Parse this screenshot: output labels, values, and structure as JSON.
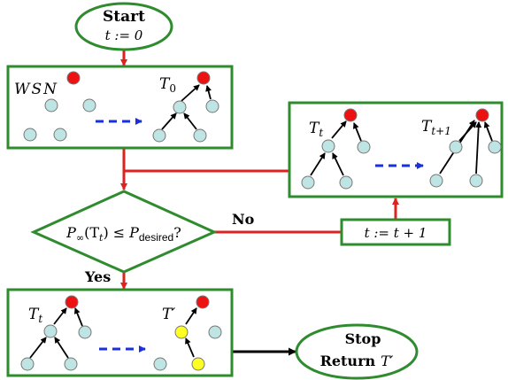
{
  "colors": {
    "box_border": "#2e8b2e",
    "flow_arrow": "#dd2222",
    "tree_edge": "#000000",
    "transform_arrow": "#1a2fe0",
    "node_fill": "#bfe4e4",
    "root_fill": "#ee1111",
    "selected_fill": "#ffff22",
    "stop_arrow": "#000000"
  },
  "start": {
    "title": "Start",
    "init": "t := 0"
  },
  "init_box": {
    "wsn_label": "WSN",
    "tree_label": "T",
    "tree_sub": "0"
  },
  "update_box": {
    "tree_t_label": "T",
    "tree_t_sub": "t",
    "tree_next_label": "T",
    "tree_next_sub": "t+1"
  },
  "decision": {
    "p_sym": "P",
    "p_sub": "∞",
    "arg": "(T",
    "arg_sub": "t",
    "arg_close": ")",
    "leq": "≤",
    "desired_sym": "P",
    "desired_sub": "desired",
    "question": "?"
  },
  "labels": {
    "no": "No",
    "yes": "Yes"
  },
  "increment": {
    "text": "t := t + 1"
  },
  "final_box": {
    "tree_t_label": "T",
    "tree_t_sub": "t",
    "tree_prime_label": "T′"
  },
  "stop": {
    "line1": "Stop",
    "line2": "Return",
    "line2_var": "T′"
  }
}
